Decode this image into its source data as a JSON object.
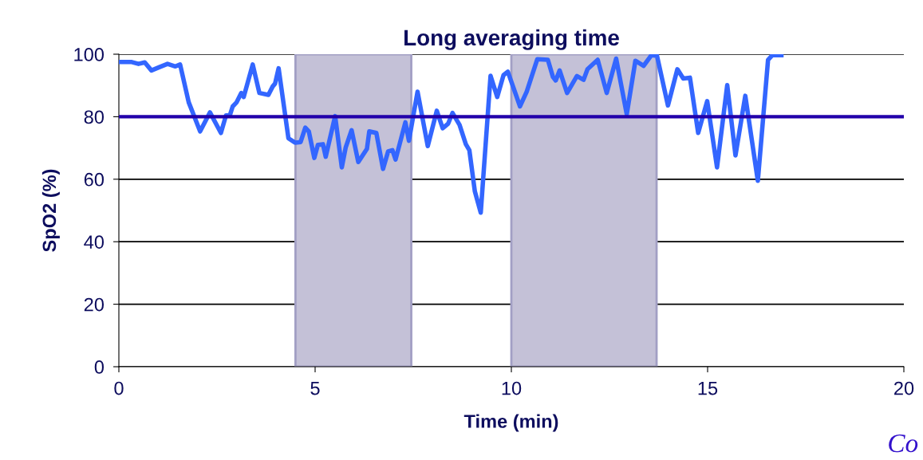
{
  "chart_data": {
    "type": "line",
    "title": "Long averaging time",
    "xlabel": "Time (min)",
    "ylabel": "SpO2 (%)",
    "series": [
      {
        "color": "#3366ff",
        "x": [
          0.02,
          0.33,
          0.5,
          0.66,
          0.83,
          1.0,
          1.24,
          1.44,
          1.56,
          1.78,
          2.07,
          2.32,
          2.6,
          2.73,
          2.83,
          2.9,
          3.0,
          3.12,
          3.18,
          3.41,
          3.58,
          3.81,
          3.92,
          3.98,
          4.07,
          4.32,
          4.49,
          4.63,
          4.75,
          4.84,
          4.98,
          5.07,
          5.2,
          5.27,
          5.51,
          5.68,
          5.78,
          5.93,
          6.1,
          6.32,
          6.38,
          6.56,
          6.73,
          6.86,
          6.97,
          7.05,
          7.3,
          7.39,
          7.61,
          7.87,
          8.1,
          8.25,
          8.39,
          8.5,
          8.68,
          8.84,
          8.93,
          9.07,
          9.22,
          9.47,
          9.64,
          9.8,
          9.91,
          10.22,
          10.39,
          10.66,
          10.93,
          11.06,
          11.13,
          11.23,
          11.42,
          11.67,
          11.84,
          11.94,
          12.2,
          12.43,
          12.67,
          12.94,
          13.16,
          13.37,
          13.57,
          13.71,
          13.99,
          14.23,
          14.38,
          14.55,
          14.76,
          14.99,
          15.24,
          15.5,
          15.71,
          15.96,
          16.28,
          16.54,
          16.65,
          16.88
        ],
        "values": [
          97.5,
          97.5,
          96.9,
          97.4,
          94.8,
          95.7,
          96.9,
          96.1,
          96.7,
          84.6,
          75.3,
          81.4,
          74.8,
          80.4,
          80.5,
          83.3,
          84.6,
          87.6,
          86.3,
          96.7,
          87.6,
          87.0,
          89.7,
          90.6,
          95.5,
          73.1,
          71.7,
          71.9,
          76.5,
          75.3,
          66.8,
          71.0,
          71.2,
          67.2,
          80.2,
          63.8,
          70.2,
          75.7,
          65.5,
          69.7,
          75.3,
          74.8,
          63.3,
          68.9,
          69.3,
          66.3,
          78.2,
          72.3,
          88.0,
          70.6,
          81.9,
          76.3,
          77.8,
          81.2,
          77.4,
          71.2,
          69.3,
          56.1,
          49.3,
          93.1,
          86.3,
          93.3,
          94.4,
          83.3,
          88.0,
          98.4,
          98.2,
          92.7,
          91.6,
          94.8,
          87.6,
          93.0,
          91.8,
          95.2,
          98.2,
          87.6,
          98.6,
          80.8,
          97.9,
          96.3,
          99.7,
          99.5,
          83.6,
          95.2,
          92.2,
          92.5,
          74.8,
          85.0,
          63.8,
          90.1,
          67.6,
          86.7,
          59.5,
          98.2,
          99.7,
          99.7
        ]
      }
    ],
    "xlim": [
      0,
      20
    ],
    "xticks": [
      0,
      5,
      10,
      15,
      20
    ],
    "ylim": [
      0,
      100
    ],
    "yticks": [
      0,
      20,
      40,
      60,
      80,
      100
    ],
    "grid": "y",
    "legend": false,
    "marker": "none",
    "line_style": "solid",
    "ref_lines": [
      {
        "axis": "y",
        "value": 80,
        "color": "#2200aa",
        "line_style": "solid"
      }
    ],
    "bands": [
      {
        "axis": "x",
        "from": 4.5,
        "to": 7.45,
        "color": "#c4c1d7"
      },
      {
        "axis": "x",
        "from": 10.0,
        "to": 13.7,
        "color": "#c4c1d7"
      }
    ],
    "annotations": [
      "Co"
    ]
  }
}
